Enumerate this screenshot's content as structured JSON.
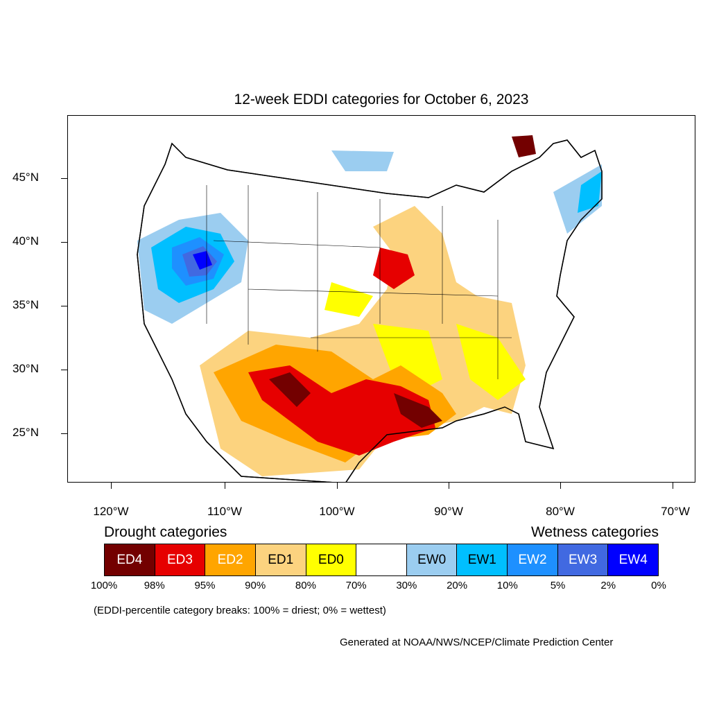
{
  "title": "12-week EDDI categories for October 6, 2023",
  "lat_labels": [
    "45°N",
    "40°N",
    "35°N",
    "30°N",
    "25°N"
  ],
  "lon_labels": [
    "120°W",
    "110°W",
    "100°W",
    "90°W",
    "80°W",
    "70°W"
  ],
  "legend": {
    "drought_title": "Drought categories",
    "wetness_title": "Wetness categories",
    "categories": [
      {
        "label": "ED4",
        "color": "#730000",
        "text_color": "#ffffff"
      },
      {
        "label": "ED3",
        "color": "#e60000",
        "text_color": "#ffffff"
      },
      {
        "label": "ED2",
        "color": "#ffa500",
        "text_color": "#ffffff"
      },
      {
        "label": "ED1",
        "color": "#fcd37f",
        "text_color": "#000000"
      },
      {
        "label": "ED0",
        "color": "#ffff00",
        "text_color": "#000000"
      },
      {
        "label": "",
        "color": "#ffffff",
        "text_color": "#000000"
      },
      {
        "label": "EW0",
        "color": "#9bcdf0",
        "text_color": "#000000"
      },
      {
        "label": "EW1",
        "color": "#00bfff",
        "text_color": "#000000"
      },
      {
        "label": "EW2",
        "color": "#1e90ff",
        "text_color": "#ffffff"
      },
      {
        "label": "EW3",
        "color": "#4169e1",
        "text_color": "#ffffff"
      },
      {
        "label": "EW4",
        "color": "#0000ff",
        "text_color": "#ffffff"
      }
    ],
    "percentiles": [
      "100%",
      "98%",
      "95%",
      "90%",
      "80%",
      "70%",
      "30%",
      "20%",
      "10%",
      "5%",
      "2%",
      "0%"
    ]
  },
  "note": "(EDDI-percentile category breaks: 100% = driest; 0% = wettest)",
  "credit": "Generated at NOAA/NWS/NCEP/Climate Prediction Center"
}
